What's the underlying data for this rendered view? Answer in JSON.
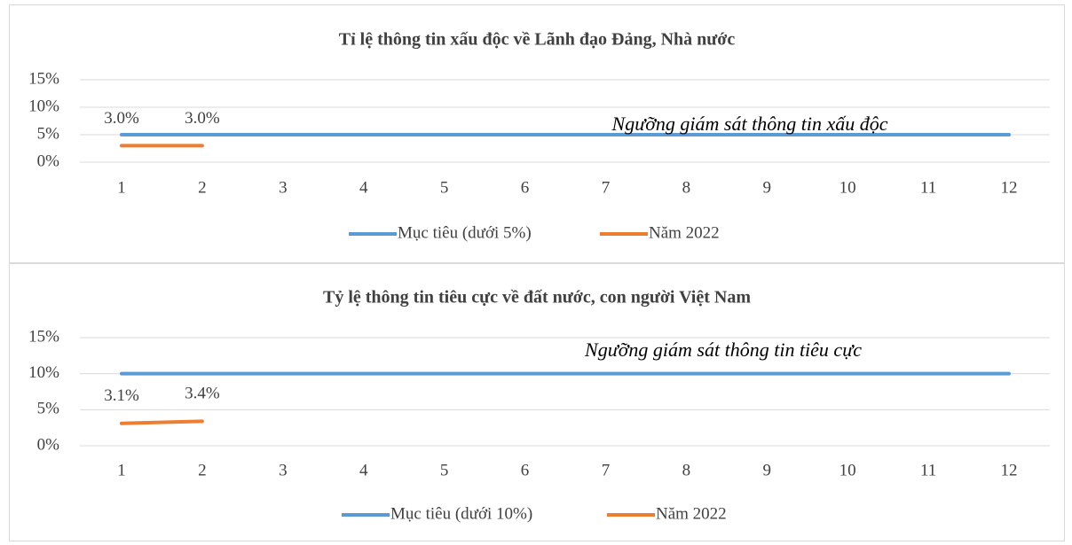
{
  "chart_data": [
    {
      "type": "line",
      "title": "Tỉ lệ thông tin xấu độc về Lãnh đạo Đảng, Nhà nước",
      "annotation": "Ngưỡng giám sát thông tin xấu độc",
      "categories": [
        "1",
        "2",
        "3",
        "4",
        "5",
        "6",
        "7",
        "8",
        "9",
        "10",
        "11",
        "12"
      ],
      "series": [
        {
          "name": "Mục tiêu (dưới 5%)",
          "color": "#5b9bd5",
          "values": [
            5,
            5,
            5,
            5,
            5,
            5,
            5,
            5,
            5,
            5,
            5,
            5
          ]
        },
        {
          "name": "Năm 2022",
          "color": "#ed7d31",
          "values": [
            3.0,
            3.0,
            null,
            null,
            null,
            null,
            null,
            null,
            null,
            null,
            null,
            null
          ],
          "value_labels": [
            "3.0%",
            "3.0%",
            null,
            null,
            null,
            null,
            null,
            null,
            null,
            null,
            null,
            null
          ]
        }
      ],
      "ylim": [
        0,
        15
      ],
      "yticks": [
        {
          "value": 0,
          "label": "0%"
        },
        {
          "value": 5,
          "label": "5%"
        },
        {
          "value": 10,
          "label": "10%"
        },
        {
          "value": 15,
          "label": "15%"
        }
      ],
      "grid": true,
      "legend": "bottom"
    },
    {
      "type": "line",
      "title": "Tỷ lệ thông tin tiêu cực về đất nước, con người Việt Nam",
      "annotation": "Ngưỡng giám sát thông tin tiêu cực",
      "categories": [
        "1",
        "2",
        "3",
        "4",
        "5",
        "6",
        "7",
        "8",
        "9",
        "10",
        "11",
        "12"
      ],
      "series": [
        {
          "name": "Mục tiêu (dưới 10%)",
          "color": "#5b9bd5",
          "values": [
            10,
            10,
            10,
            10,
            10,
            10,
            10,
            10,
            10,
            10,
            10,
            10
          ]
        },
        {
          "name": "Năm 2022",
          "color": "#ed7d31",
          "values": [
            3.1,
            3.4,
            null,
            null,
            null,
            null,
            null,
            null,
            null,
            null,
            null,
            null
          ],
          "value_labels": [
            "3.1%",
            "3.4%",
            null,
            null,
            null,
            null,
            null,
            null,
            null,
            null,
            null,
            null
          ]
        }
      ],
      "ylim": [
        0,
        15
      ],
      "yticks": [
        {
          "value": 0,
          "label": "0%"
        },
        {
          "value": 5,
          "label": "5%"
        },
        {
          "value": 10,
          "label": "10%"
        },
        {
          "value": 15,
          "label": "15%"
        }
      ],
      "grid": true,
      "legend": "bottom"
    }
  ]
}
